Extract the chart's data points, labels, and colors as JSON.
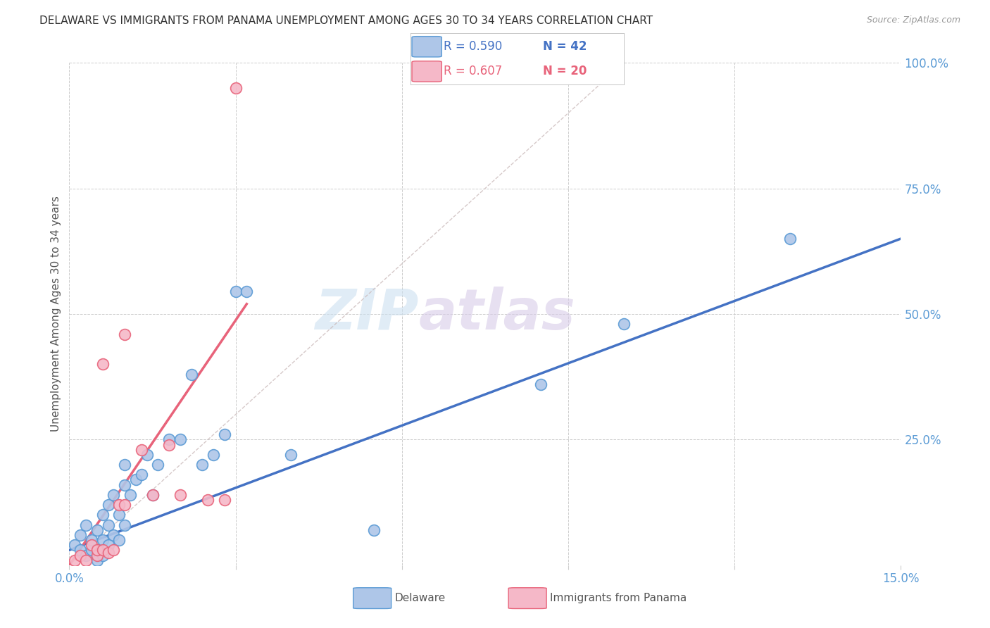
{
  "title": "DELAWARE VS IMMIGRANTS FROM PANAMA UNEMPLOYMENT AMONG AGES 30 TO 34 YEARS CORRELATION CHART",
  "source": "Source: ZipAtlas.com",
  "ylabel": "Unemployment Among Ages 30 to 34 years",
  "xlim": [
    0,
    0.15
  ],
  "ylim": [
    0,
    1.0
  ],
  "xticks": [
    0.0,
    0.03,
    0.06,
    0.09,
    0.12,
    0.15
  ],
  "xtick_labels": [
    "0.0%",
    "",
    "",
    "",
    "",
    "15.0%"
  ],
  "yticks_right": [
    0.0,
    0.25,
    0.5,
    0.75,
    1.0
  ],
  "ytick_labels_right": [
    "",
    "25.0%",
    "50.0%",
    "75.0%",
    "100.0%"
  ],
  "delaware_color": "#aec6e8",
  "panama_color": "#f5b8c8",
  "delaware_edge_color": "#5b9bd5",
  "panama_edge_color": "#e8637a",
  "delaware_line_color": "#4472c4",
  "panama_line_color": "#e8637a",
  "diag_line_color": "#ccbcbc",
  "legend_R_delaware": "R = 0.590",
  "legend_N_delaware": "N = 42",
  "legend_R_panama": "R = 0.607",
  "legend_N_panama": "N = 20",
  "background_color": "#ffffff",
  "delaware_scatter_x": [
    0.001,
    0.002,
    0.002,
    0.003,
    0.003,
    0.004,
    0.004,
    0.005,
    0.005,
    0.005,
    0.006,
    0.006,
    0.006,
    0.007,
    0.007,
    0.007,
    0.008,
    0.008,
    0.009,
    0.009,
    0.01,
    0.01,
    0.01,
    0.011,
    0.012,
    0.013,
    0.014,
    0.015,
    0.016,
    0.018,
    0.02,
    0.022,
    0.024,
    0.026,
    0.028,
    0.03,
    0.032,
    0.04,
    0.055,
    0.085,
    0.1,
    0.13
  ],
  "delaware_scatter_y": [
    0.04,
    0.03,
    0.06,
    0.02,
    0.08,
    0.03,
    0.05,
    0.01,
    0.03,
    0.07,
    0.02,
    0.05,
    0.1,
    0.04,
    0.08,
    0.12,
    0.06,
    0.14,
    0.05,
    0.1,
    0.08,
    0.16,
    0.2,
    0.14,
    0.17,
    0.18,
    0.22,
    0.14,
    0.2,
    0.25,
    0.25,
    0.38,
    0.2,
    0.22,
    0.26,
    0.545,
    0.545,
    0.22,
    0.07,
    0.36,
    0.48,
    0.65
  ],
  "panama_scatter_x": [
    0.001,
    0.002,
    0.003,
    0.004,
    0.005,
    0.005,
    0.006,
    0.006,
    0.007,
    0.008,
    0.009,
    0.01,
    0.01,
    0.013,
    0.015,
    0.018,
    0.02,
    0.025,
    0.028,
    0.03
  ],
  "panama_scatter_y": [
    0.01,
    0.02,
    0.01,
    0.04,
    0.02,
    0.03,
    0.03,
    0.4,
    0.025,
    0.03,
    0.12,
    0.12,
    0.46,
    0.23,
    0.14,
    0.24,
    0.14,
    0.13,
    0.13,
    0.95
  ],
  "delaware_line_x": [
    0.0,
    0.15
  ],
  "delaware_line_y": [
    0.03,
    0.65
  ],
  "panama_line_x": [
    0.0,
    0.032
  ],
  "panama_line_y": [
    0.0,
    0.52
  ],
  "diag_line_x": [
    0.0,
    0.1
  ],
  "diag_line_y": [
    0.0,
    1.0
  ]
}
